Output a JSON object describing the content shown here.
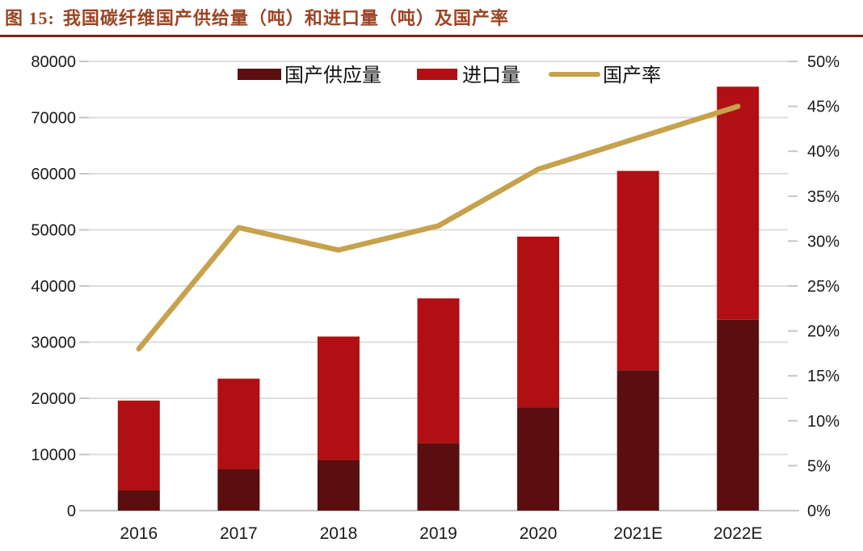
{
  "header": {
    "figure_label": "图 15:",
    "title": "我国碳纤维国产供给量（吨）和进口量（吨）及国产率",
    "title_color": "#9c4423",
    "rule_color": "#7b231b"
  },
  "chart_data": {
    "type": "bar",
    "subtype": "stacked-bars-with-right-axis-line",
    "title": "图 15: 我国碳纤维国产供给量（吨）和进口量（吨）及国产率",
    "categories": [
      "2016",
      "2017",
      "2018",
      "2019",
      "2020",
      "2021E",
      "2022E"
    ],
    "series": [
      {
        "name": "国产供应量",
        "type": "bar",
        "stack": "total",
        "color": "#5a0e10",
        "axis": "left",
        "values": [
          3600,
          7400,
          9000,
          12000,
          18400,
          25000,
          34000
        ]
      },
      {
        "name": "进口量",
        "type": "bar",
        "stack": "total",
        "color": "#b01013",
        "axis": "left",
        "values": [
          16000,
          16100,
          22000,
          25800,
          30400,
          35500,
          41500
        ]
      },
      {
        "name": "国产率",
        "type": "line",
        "color": "#c7a24c",
        "axis": "right",
        "unit": "%",
        "values": [
          18,
          31.5,
          29,
          31.7,
          38,
          41.5,
          45
        ]
      }
    ],
    "stacked_totals": [
      19600,
      23500,
      31000,
      37800,
      48800,
      60500,
      75500
    ],
    "left_axis": {
      "min": 0,
      "max": 80000,
      "step": 10000,
      "tick_labels": [
        "0",
        "10000",
        "20000",
        "30000",
        "40000",
        "50000",
        "60000",
        "70000",
        "80000"
      ]
    },
    "right_axis": {
      "min": 0,
      "max": 50,
      "step": 5,
      "unit": "%",
      "tick_labels": [
        "0%",
        "5%",
        "10%",
        "15%",
        "20%",
        "25%",
        "30%",
        "35%",
        "40%",
        "45%",
        "50%"
      ]
    },
    "legend_position": "top-center",
    "grid": true,
    "colors": {
      "grid_line": "#dddddd",
      "axis_line": "#c6c6c6",
      "tick_text": "#1a1a1a"
    }
  }
}
